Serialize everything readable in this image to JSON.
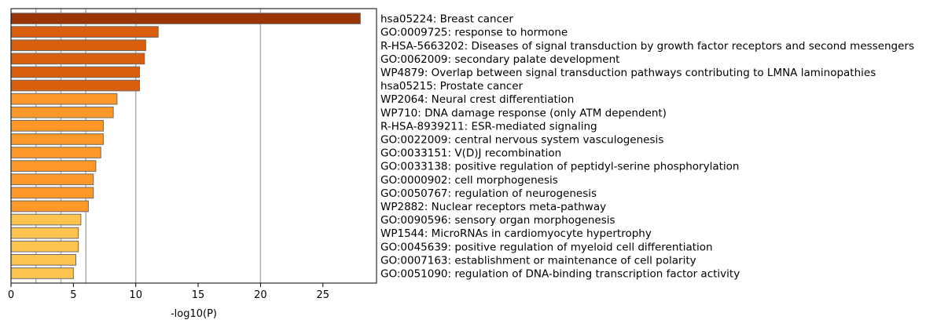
{
  "chart_data": {
    "type": "bar",
    "orientation": "horizontal",
    "title": "",
    "xlabel": "-log10(P)",
    "ylabel": "",
    "xlim": [
      0,
      29.3
    ],
    "x_ticks": [
      0,
      5,
      10,
      15,
      20,
      25
    ],
    "vertical_grid_lines": [
      2,
      4,
      6,
      10,
      20
    ],
    "grid": false,
    "legend": "none",
    "colors": {
      "bar_edge": "#6b6b6b",
      "grid": "#b0b0b0",
      "axis": "#000000"
    },
    "categories": [
      "hsa05224: Breast cancer",
      "GO:0009725: response to hormone",
      "R-HSA-5663202: Diseases of signal transduction by growth factor receptors and second messengers",
      "GO:0062009: secondary palate development",
      "WP4879: Overlap between signal transduction pathways contributing to LMNA laminopathies",
      "hsa05215: Prostate cancer",
      "WP2064: Neural crest differentiation",
      "WP710: DNA damage response (only ATM dependent)",
      "R-HSA-8939211: ESR-mediated signaling",
      "GO:0022009: central nervous system vasculogenesis",
      "GO:0033151: V(D)J recombination",
      "GO:0033138: positive regulation of peptidyl-serine phosphorylation",
      "GO:0000902: cell morphogenesis",
      "GO:0050767: regulation of neurogenesis",
      "WP2882: Nuclear receptors meta-pathway",
      "GO:0090596: sensory organ morphogenesis",
      "WP1544: MicroRNAs in cardiomyocyte hypertrophy",
      "GO:0045639: positive regulation of myeloid cell differentiation",
      "GO:0007163: establishment or maintenance of cell polarity",
      "GO:0051090: regulation of DNA-binding transcription factor activity"
    ],
    "values": [
      28.0,
      11.8,
      10.8,
      10.7,
      10.3,
      10.3,
      8.5,
      8.2,
      7.4,
      7.4,
      7.2,
      6.8,
      6.6,
      6.6,
      6.2,
      5.6,
      5.4,
      5.4,
      5.2,
      5.0
    ],
    "bar_colors": [
      "#993404",
      "#d95f0e",
      "#d95f0e",
      "#d95f0e",
      "#d95f0e",
      "#d95f0e",
      "#fe9929",
      "#fe9929",
      "#fe9929",
      "#fe9929",
      "#fe9929",
      "#fe9929",
      "#fe9929",
      "#fe9929",
      "#fe9929",
      "#fec44f",
      "#fec44f",
      "#fec44f",
      "#fec44f",
      "#fec44f"
    ]
  }
}
